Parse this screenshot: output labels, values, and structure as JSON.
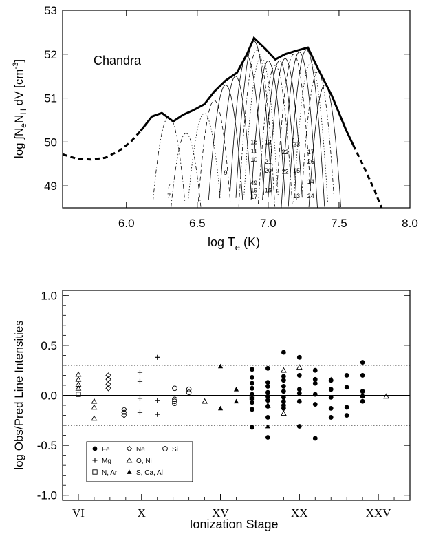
{
  "chart_data": [
    {
      "type": "line",
      "annotation": "Chandra",
      "xlabel_main": "log T",
      "xlabel_sub": "e",
      "xlabel_tail": " (K)",
      "ylabel_pre": "log ∫N",
      "ylabel_sub1": "e",
      "ylabel_mid": "N",
      "ylabel_sub2": "H",
      "ylabel_tail": " dV [cm",
      "ylabel_sup": "-3",
      "ylabel_end": "]",
      "xlim": [
        5.55,
        8.0
      ],
      "ylim": [
        48.5,
        53.0
      ],
      "xticks": [
        "6.0",
        "6.5",
        "7.0",
        "7.5",
        "8.0"
      ],
      "xtick_values": [
        6.0,
        6.5,
        7.0,
        7.5,
        8.0
      ],
      "yticks": [
        "49",
        "50",
        "51",
        "52",
        "53"
      ],
      "ytick_values": [
        49,
        50,
        51,
        52,
        53
      ],
      "dem_solid": [
        [
          6.1,
          50.25
        ],
        [
          6.18,
          50.58
        ],
        [
          6.25,
          50.66
        ],
        [
          6.33,
          50.47
        ],
        [
          6.4,
          50.62
        ],
        [
          6.47,
          50.72
        ],
        [
          6.55,
          50.86
        ],
        [
          6.62,
          51.15
        ],
        [
          6.7,
          51.4
        ],
        [
          6.78,
          51.58
        ],
        [
          6.85,
          52.0
        ],
        [
          6.9,
          52.37
        ],
        [
          6.98,
          52.12
        ],
        [
          7.05,
          51.88
        ],
        [
          7.12,
          52.0
        ],
        [
          7.2,
          52.08
        ],
        [
          7.28,
          52.15
        ],
        [
          7.35,
          51.68
        ],
        [
          7.45,
          51.05
        ],
        [
          7.55,
          50.27
        ],
        [
          7.6,
          49.93
        ]
      ],
      "dem_dashed_left": [
        [
          5.55,
          49.72
        ],
        [
          5.65,
          49.62
        ],
        [
          5.75,
          49.6
        ],
        [
          5.85,
          49.64
        ],
        [
          5.95,
          49.8
        ],
        [
          6.03,
          50.0
        ],
        [
          6.1,
          50.25
        ]
      ],
      "dem_dashed_right": [
        [
          7.6,
          49.93
        ],
        [
          7.68,
          49.4
        ],
        [
          7.75,
          48.9
        ],
        [
          7.8,
          48.5
        ]
      ],
      "contribution_curves": [
        {
          "peak": 6.3,
          "top": 50.58,
          "w": 0.12,
          "style": "dashdot"
        },
        {
          "peak": 6.42,
          "top": 50.2,
          "w": 0.12,
          "style": "dashdot"
        },
        {
          "peak": 6.55,
          "top": 50.65,
          "w": 0.12,
          "style": "dotted"
        },
        {
          "peak": 6.62,
          "top": 50.95,
          "w": 0.11,
          "style": "dashed"
        },
        {
          "peak": 6.7,
          "top": 51.3,
          "w": 0.11,
          "style": "solid"
        },
        {
          "peak": 6.77,
          "top": 51.5,
          "w": 0.1,
          "style": "solid"
        },
        {
          "peak": 6.85,
          "top": 51.95,
          "w": 0.1,
          "style": "solid"
        },
        {
          "peak": 6.9,
          "top": 52.3,
          "w": 0.1,
          "style": "solid"
        },
        {
          "peak": 6.92,
          "top": 52.1,
          "w": 0.1,
          "style": "dashdot"
        },
        {
          "peak": 6.95,
          "top": 51.95,
          "w": 0.1,
          "style": "dotted"
        },
        {
          "peak": 7.0,
          "top": 51.85,
          "w": 0.1,
          "style": "solid"
        },
        {
          "peak": 7.05,
          "top": 51.75,
          "w": 0.1,
          "style": "dashdot"
        },
        {
          "peak": 7.08,
          "top": 51.85,
          "w": 0.1,
          "style": "solid"
        },
        {
          "peak": 7.12,
          "top": 51.9,
          "w": 0.1,
          "style": "solid"
        },
        {
          "peak": 7.18,
          "top": 52.0,
          "w": 0.1,
          "style": "dashed"
        },
        {
          "peak": 7.22,
          "top": 52.05,
          "w": 0.1,
          "style": "solid"
        },
        {
          "peak": 7.27,
          "top": 52.1,
          "w": 0.1,
          "style": "solid"
        },
        {
          "peak": 7.3,
          "top": 51.8,
          "w": 0.1,
          "style": "dotted"
        },
        {
          "peak": 7.35,
          "top": 51.6,
          "w": 0.1,
          "style": "dashdot"
        },
        {
          "peak": 7.4,
          "top": 51.3,
          "w": 0.1,
          "style": "solid"
        }
      ],
      "curve_labels": [
        {
          "t": "7",
          "x": 6.3,
          "y": 48.95
        },
        {
          "t": "7",
          "x": 6.3,
          "y": 48.72
        },
        {
          "t": "9",
          "x": 6.7,
          "y": 49.25
        },
        {
          "t": "18",
          "x": 6.9,
          "y": 49.95
        },
        {
          "t": "11",
          "x": 6.9,
          "y": 49.75
        },
        {
          "t": "10",
          "x": 6.9,
          "y": 49.55
        },
        {
          "t": "49",
          "x": 6.9,
          "y": 49.02
        },
        {
          "t": "19",
          "x": 6.9,
          "y": 48.85
        },
        {
          "t": "17",
          "x": 6.9,
          "y": 48.7
        },
        {
          "t": "12",
          "x": 7.0,
          "y": 49.95
        },
        {
          "t": "21",
          "x": 7.0,
          "y": 49.5
        },
        {
          "t": "20",
          "x": 7.0,
          "y": 49.3
        },
        {
          "t": "15",
          "x": 7.0,
          "y": 48.85
        },
        {
          "t": "22",
          "x": 7.12,
          "y": 49.72
        },
        {
          "t": "22",
          "x": 7.12,
          "y": 49.28
        },
        {
          "t": "1",
          "x": 7.18,
          "y": 49.98
        },
        {
          "t": "23",
          "x": 7.2,
          "y": 49.9
        },
        {
          "t": "15",
          "x": 7.2,
          "y": 49.3
        },
        {
          "t": "13",
          "x": 7.2,
          "y": 48.72
        },
        {
          "t": "17",
          "x": 7.3,
          "y": 49.72
        },
        {
          "t": "26",
          "x": 7.3,
          "y": 49.5
        },
        {
          "t": "14",
          "x": 7.3,
          "y": 49.05
        },
        {
          "t": "24",
          "x": 7.3,
          "y": 48.72
        }
      ]
    },
    {
      "type": "scatter",
      "ylabel": "log Obs/Pred Line Intensities",
      "xlabel": "Ionization Stage",
      "xlim": [
        5.0,
        27.0
      ],
      "ylim": [
        -1.05,
        1.05
      ],
      "xticks": [
        "VI",
        "X",
        "XV",
        "XX",
        "XXV"
      ],
      "xtick_values": [
        6,
        10,
        15,
        20,
        25
      ],
      "yticks": [
        "1.0",
        "0.5",
        "0.0",
        "-0.5",
        "-1.0"
      ],
      "ytick_values": [
        1.0,
        0.5,
        0.0,
        -0.5,
        -1.0
      ],
      "reference_lines": [
        0.3,
        -0.3
      ],
      "legend": [
        {
          "label": "Fe",
          "marker": "filled-circle"
        },
        {
          "label": "Ne",
          "marker": "diamond"
        },
        {
          "label": "Si",
          "marker": "open-circle"
        },
        {
          "label": "Mg",
          "marker": "plus"
        },
        {
          "label": "O, Ni",
          "marker": "open-triangle"
        },
        {
          "label": "N, Ar",
          "marker": "open-square"
        },
        {
          "label": "S, Ca, Al",
          "marker": "filled-triangle"
        }
      ],
      "series": [
        {
          "name": "Fe",
          "marker": "filled-circle",
          "points": [
            [
              17,
              0.26
            ],
            [
              17,
              0.18
            ],
            [
              17,
              0.12
            ],
            [
              17,
              0.07
            ],
            [
              17,
              0.01
            ],
            [
              17,
              -0.03
            ],
            [
              17,
              -0.07
            ],
            [
              17,
              -0.14
            ],
            [
              17,
              -0.32
            ],
            [
              18,
              0.27
            ],
            [
              18,
              0.13
            ],
            [
              18,
              0.09
            ],
            [
              18,
              0.03
            ],
            [
              18,
              -0.01
            ],
            [
              18,
              -0.05
            ],
            [
              18,
              -0.11
            ],
            [
              18,
              -0.22
            ],
            [
              18,
              -0.42
            ],
            [
              19,
              0.43
            ],
            [
              19,
              0.19
            ],
            [
              19,
              0.15
            ],
            [
              19,
              0.09
            ],
            [
              19,
              0.04
            ],
            [
              19,
              -0.02
            ],
            [
              19,
              -0.06
            ],
            [
              19,
              -0.1
            ],
            [
              19,
              -0.13
            ],
            [
              20,
              0.38
            ],
            [
              20,
              0.2
            ],
            [
              20,
              0.06
            ],
            [
              20,
              0.02
            ],
            [
              20,
              -0.06
            ],
            [
              20,
              -0.31
            ],
            [
              21,
              0.25
            ],
            [
              21,
              0.16
            ],
            [
              21,
              0.12
            ],
            [
              21,
              0.01
            ],
            [
              21,
              -0.09
            ],
            [
              21,
              -0.43
            ],
            [
              22,
              0.15
            ],
            [
              22,
              0.06
            ],
            [
              22,
              -0.02
            ],
            [
              22,
              -0.13
            ],
            [
              22,
              -0.22
            ],
            [
              23,
              0.2
            ],
            [
              23,
              0.08
            ],
            [
              23,
              -0.12
            ],
            [
              23,
              -0.2
            ],
            [
              24,
              0.33
            ],
            [
              24,
              0.2
            ],
            [
              24,
              0.04
            ],
            [
              24,
              -0.01
            ],
            [
              24,
              -0.06
            ]
          ]
        },
        {
          "name": "Ne",
          "marker": "diamond",
          "points": [
            [
              7.9,
              0.2
            ],
            [
              7.9,
              0.16
            ],
            [
              7.9,
              0.11
            ],
            [
              7.9,
              0.07
            ],
            [
              8.9,
              -0.14
            ],
            [
              8.9,
              -0.17
            ],
            [
              8.9,
              -0.2
            ]
          ]
        },
        {
          "name": "Si",
          "marker": "open-circle",
          "points": [
            [
              12.1,
              0.07
            ],
            [
              12.1,
              -0.04
            ],
            [
              12.1,
              -0.06
            ],
            [
              12.1,
              -0.08
            ],
            [
              13.0,
              0.06
            ],
            [
              13.0,
              0.03
            ]
          ]
        },
        {
          "name": "Mg",
          "marker": "plus",
          "points": [
            [
              9.9,
              0.23
            ],
            [
              9.9,
              0.14
            ],
            [
              9.9,
              -0.03
            ],
            [
              9.9,
              -0.17
            ],
            [
              11.0,
              0.38
            ],
            [
              11.0,
              -0.05
            ],
            [
              11.0,
              -0.19
            ]
          ]
        },
        {
          "name": "O, Ni",
          "marker": "open-triangle",
          "points": [
            [
              6.0,
              0.21
            ],
            [
              6.0,
              0.16
            ],
            [
              6.0,
              0.11
            ],
            [
              6.0,
              0.07
            ],
            [
              7.0,
              -0.06
            ],
            [
              7.0,
              -0.12
            ],
            [
              7.0,
              -0.23
            ],
            [
              14.0,
              -0.06
            ],
            [
              18.0,
              -0.1
            ],
            [
              19.0,
              0.25
            ],
            [
              19.0,
              -0.18
            ],
            [
              20.0,
              0.28
            ],
            [
              25.5,
              -0.01
            ]
          ]
        },
        {
          "name": "N, Ar",
          "marker": "open-square",
          "points": [
            [
              6.0,
              0.01
            ],
            [
              17.0,
              -0.02
            ]
          ]
        },
        {
          "name": "S, Ca, Al",
          "marker": "filled-triangle",
          "points": [
            [
              15.0,
              0.29
            ],
            [
              15.0,
              -0.13
            ],
            [
              16.0,
              0.06
            ],
            [
              16.0,
              -0.06
            ],
            [
              18.0,
              -0.31
            ],
            [
              22.0,
              0.16
            ]
          ]
        }
      ]
    }
  ]
}
